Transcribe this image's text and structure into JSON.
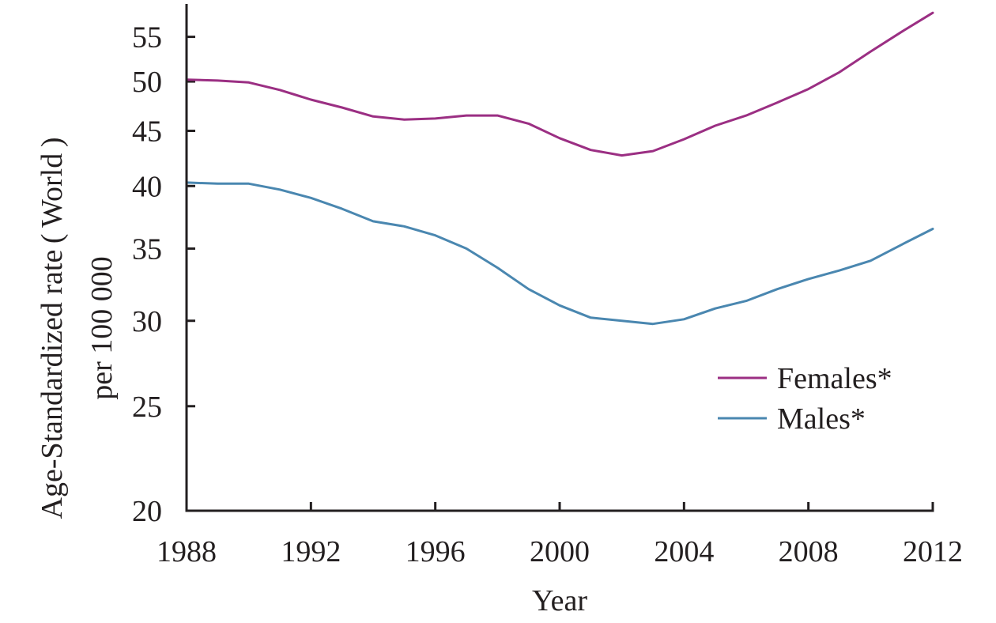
{
  "chart_data": {
    "type": "line",
    "y_scale": "log",
    "x": [
      1988,
      1989,
      1990,
      1991,
      1992,
      1993,
      1994,
      1995,
      1996,
      1997,
      1998,
      1999,
      2000,
      2001,
      2002,
      2003,
      2004,
      2005,
      2006,
      2007,
      2008,
      2009,
      2010,
      2011,
      2012
    ],
    "series": [
      {
        "name": "Females*",
        "color": "#9b2f83",
        "values": [
          50.2,
          50.1,
          49.9,
          49.1,
          48.1,
          47.3,
          46.4,
          46.1,
          46.2,
          46.5,
          46.5,
          45.7,
          44.3,
          43.2,
          42.7,
          43.1,
          44.2,
          45.5,
          46.5,
          47.8,
          49.2,
          51.0,
          53.3,
          55.6,
          57.9
        ]
      },
      {
        "name": "Males*",
        "color": "#4a87b0",
        "values": [
          40.3,
          40.2,
          40.2,
          39.7,
          39.0,
          38.1,
          37.1,
          36.7,
          36.0,
          35.0,
          33.6,
          32.1,
          31.0,
          30.2,
          30.0,
          29.8,
          30.1,
          30.8,
          31.3,
          32.1,
          32.8,
          33.4,
          34.1,
          35.3,
          36.5
        ]
      }
    ],
    "xlabel": "Year",
    "ylabel": [
      "Age-Standardized rate ( World )",
      "per 100 000"
    ],
    "x_ticks": [
      1988,
      1992,
      1996,
      2000,
      2004,
      2008,
      2012
    ],
    "y_ticks": [
      20,
      25,
      30,
      35,
      40,
      45,
      50,
      55
    ],
    "xlim": [
      1988,
      2012
    ],
    "ylim": [
      20,
      59
    ],
    "grid": false,
    "legend_position": "bottom-right"
  }
}
